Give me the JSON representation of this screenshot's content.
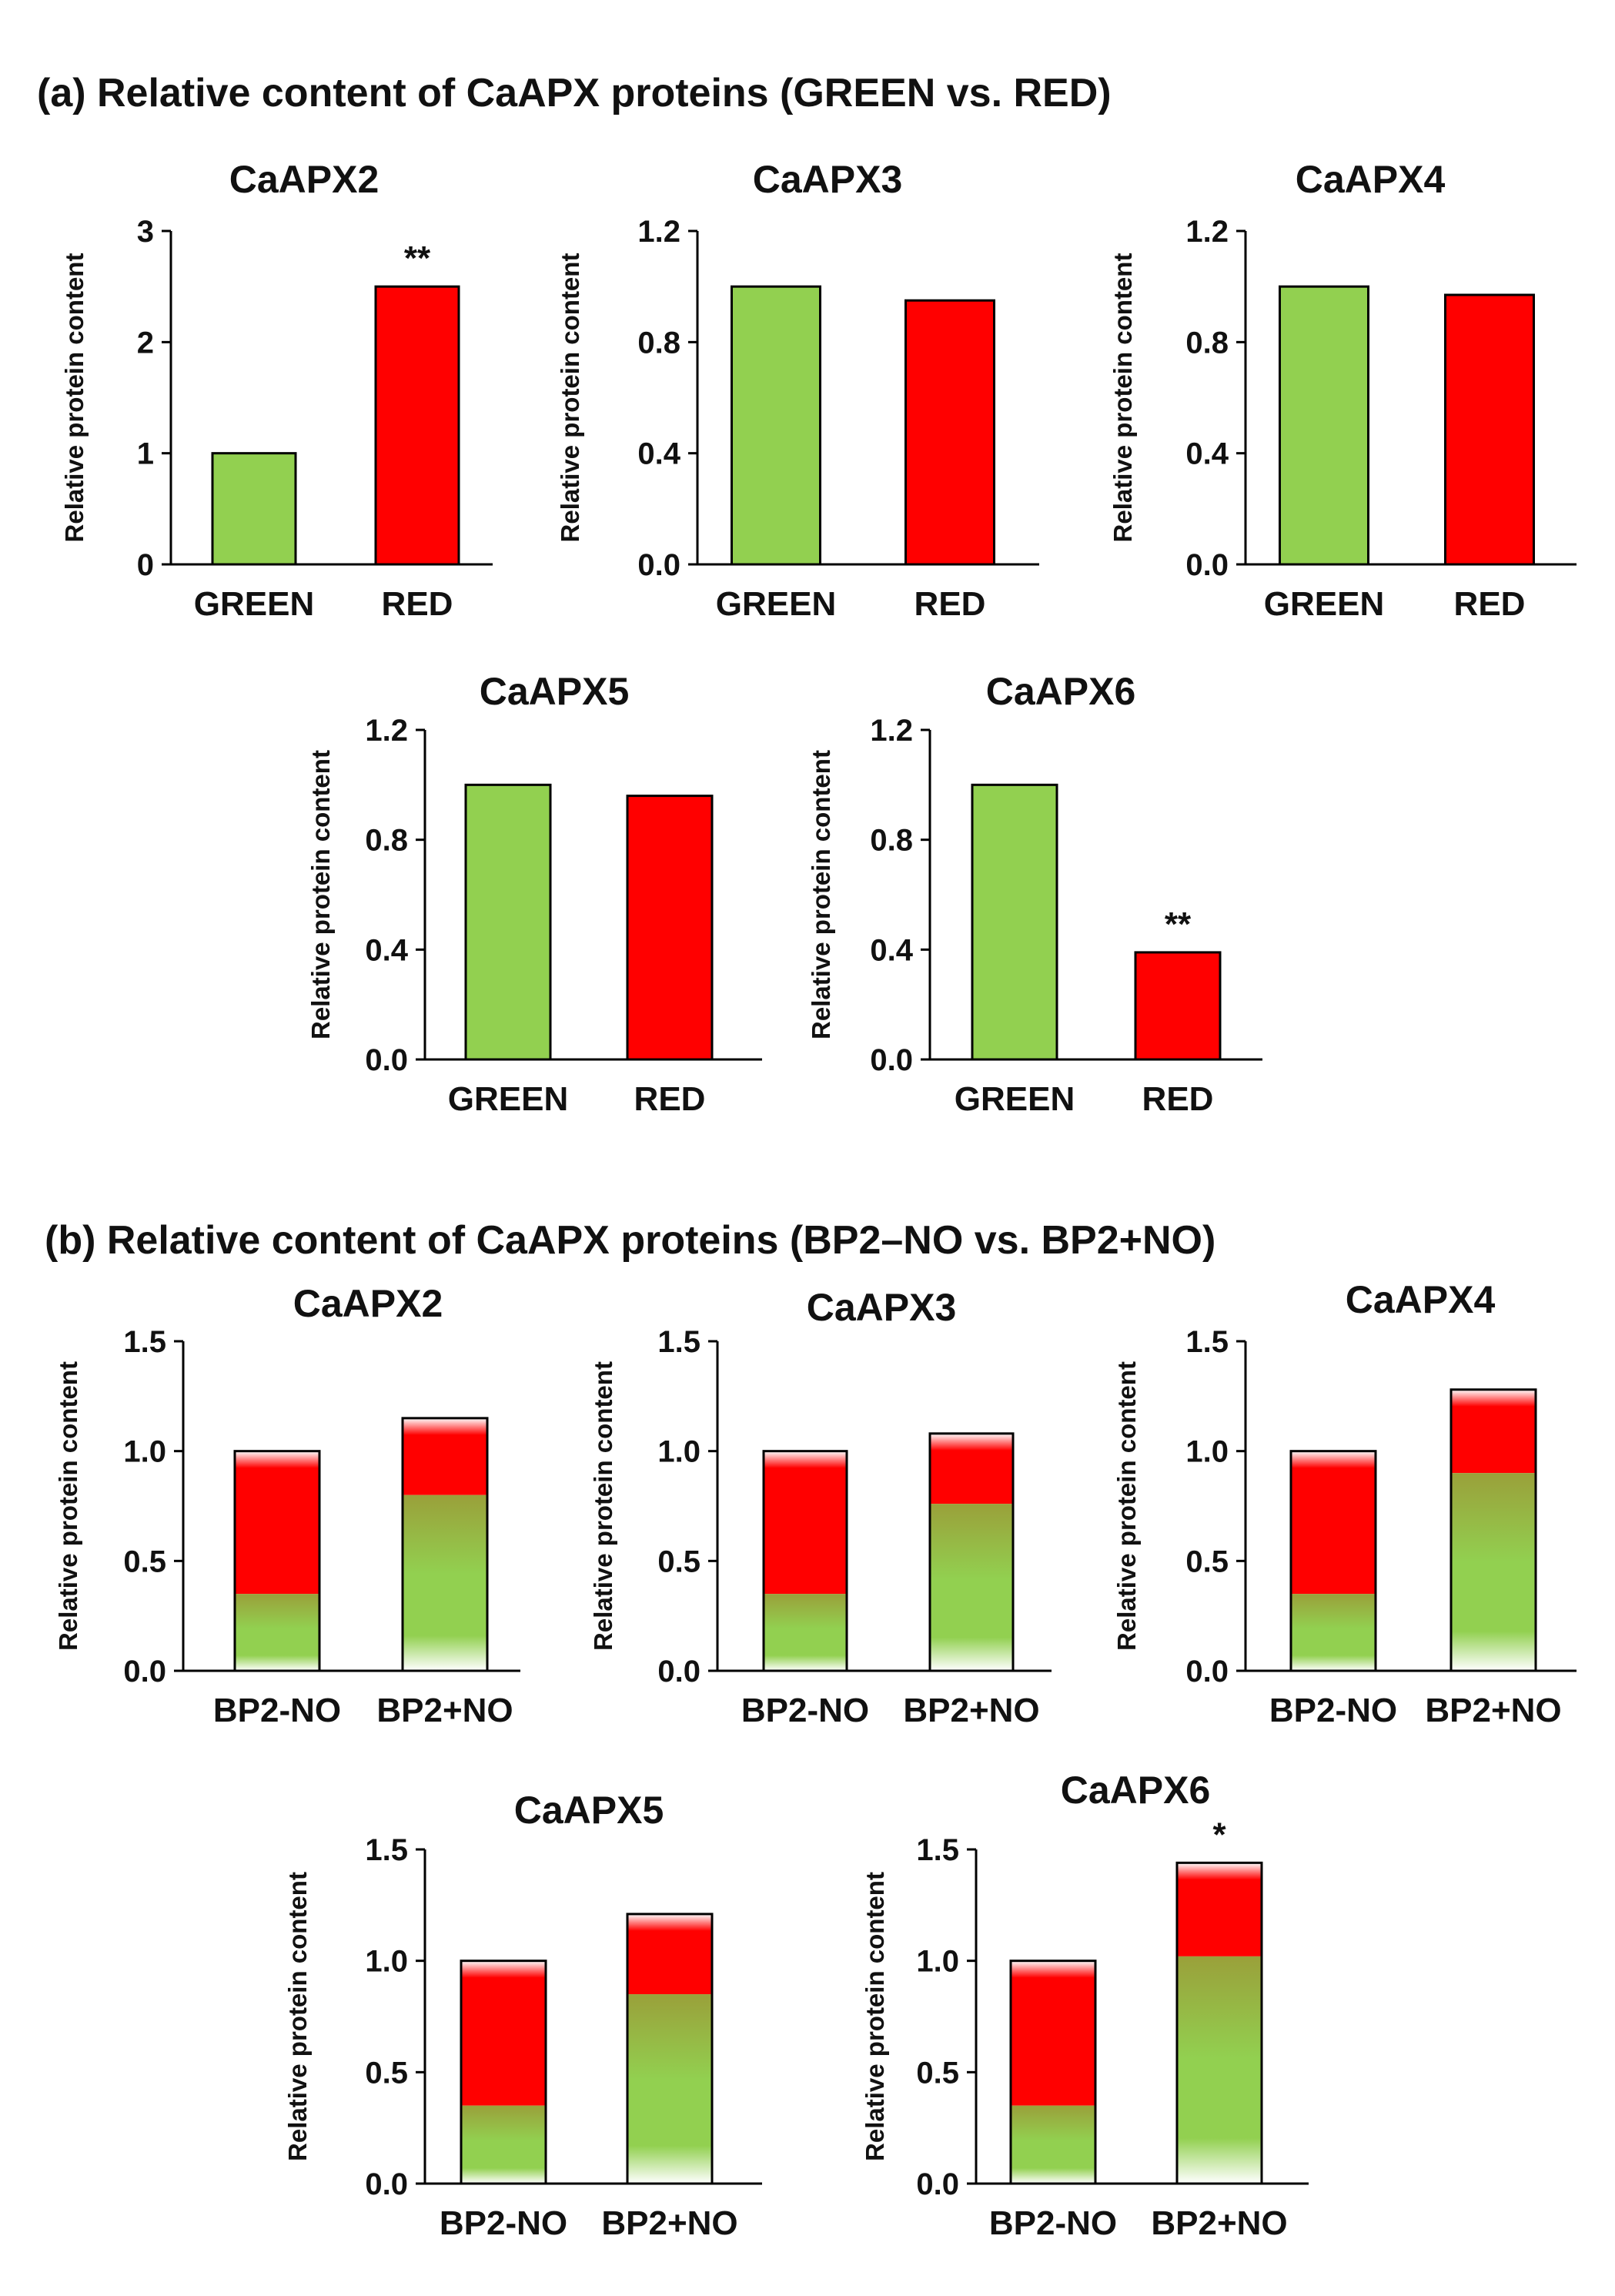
{
  "sections": [
    {
      "id": "a",
      "title": "(a) Relative content of CaAPX proteins (GREEN vs. RED)"
    },
    {
      "id": "b",
      "title": "(b) Relative content of CaAPX proteins (BP2–NO vs. BP2+NO)"
    }
  ],
  "colors": {
    "green": "#92d050",
    "red": "#ff0000",
    "olive": "#9aa03a",
    "axis": "#000000"
  },
  "chart_data": [
    {
      "section": "a",
      "type": "bar",
      "style": "solid",
      "title": "CaAPX2",
      "ylabel": "Relative protein content",
      "xlabel": "",
      "categories": [
        "GREEN",
        "RED"
      ],
      "values": [
        1.0,
        2.5
      ],
      "ylim": [
        0,
        3
      ],
      "yticks": [
        "0",
        "1",
        "2",
        "3"
      ],
      "yticks_num": [
        0,
        1,
        2,
        3
      ],
      "annotations": [
        "",
        "**"
      ]
    },
    {
      "section": "a",
      "type": "bar",
      "style": "solid",
      "title": "CaAPX3",
      "ylabel": "Relative protein content",
      "xlabel": "",
      "categories": [
        "GREEN",
        "RED"
      ],
      "values": [
        1.0,
        0.95
      ],
      "ylim": [
        0,
        1.2
      ],
      "yticks": [
        "0.0",
        "0.4",
        "0.8",
        "1.2"
      ],
      "yticks_num": [
        0,
        0.4,
        0.8,
        1.2
      ],
      "annotations": [
        "",
        ""
      ]
    },
    {
      "section": "a",
      "type": "bar",
      "style": "solid",
      "title": "CaAPX4",
      "ylabel": "Relative protein content",
      "xlabel": "",
      "categories": [
        "GREEN",
        "RED"
      ],
      "values": [
        1.0,
        0.97
      ],
      "ylim": [
        0,
        1.2
      ],
      "yticks": [
        "0.0",
        "0.4",
        "0.8",
        "1.2"
      ],
      "yticks_num": [
        0,
        0.4,
        0.8,
        1.2
      ],
      "annotations": [
        "",
        ""
      ]
    },
    {
      "section": "a",
      "type": "bar",
      "style": "solid",
      "title": "CaAPX5",
      "ylabel": "Relative protein content",
      "xlabel": "",
      "categories": [
        "GREEN",
        "RED"
      ],
      "values": [
        1.0,
        0.96
      ],
      "ylim": [
        0,
        1.2
      ],
      "yticks": [
        "0.0",
        "0.4",
        "0.8",
        "1.2"
      ],
      "yticks_num": [
        0,
        0.4,
        0.8,
        1.2
      ],
      "annotations": [
        "",
        ""
      ]
    },
    {
      "section": "a",
      "type": "bar",
      "style": "solid",
      "title": "CaAPX6",
      "ylabel": "Relative protein content",
      "xlabel": "",
      "categories": [
        "GREEN",
        "RED"
      ],
      "values": [
        1.0,
        0.39
      ],
      "ylim": [
        0,
        1.2
      ],
      "yticks": [
        "0.0",
        "0.4",
        "0.8",
        "1.2"
      ],
      "yticks_num": [
        0,
        0.4,
        0.8,
        1.2
      ],
      "annotations": [
        "",
        "**"
      ]
    },
    {
      "section": "b",
      "type": "bar",
      "style": "gradient",
      "title": "CaAPX2",
      "ylabel": "Relative protein content",
      "xlabel": "",
      "categories": [
        "BP2-NO",
        "BP2+NO"
      ],
      "values": [
        1.0,
        1.15
      ],
      "green_portion": [
        0.35,
        0.8
      ],
      "ylim": [
        0,
        1.5
      ],
      "yticks": [
        "0.0",
        "0.5",
        "1.0",
        "1.5"
      ],
      "yticks_num": [
        0,
        0.5,
        1.0,
        1.5
      ],
      "annotations": [
        "",
        ""
      ]
    },
    {
      "section": "b",
      "type": "bar",
      "style": "gradient",
      "title": "CaAPX3",
      "ylabel": "Relative protein content",
      "xlabel": "",
      "categories": [
        "BP2-NO",
        "BP2+NO"
      ],
      "values": [
        1.0,
        1.08
      ],
      "green_portion": [
        0.35,
        0.76
      ],
      "ylim": [
        0,
        1.5
      ],
      "yticks": [
        "0.0",
        "0.5",
        "1.0",
        "1.5"
      ],
      "yticks_num": [
        0,
        0.5,
        1.0,
        1.5
      ],
      "annotations": [
        "",
        ""
      ]
    },
    {
      "section": "b",
      "type": "bar",
      "style": "gradient",
      "title": "CaAPX4",
      "ylabel": "Relative protein content",
      "xlabel": "",
      "categories": [
        "BP2-NO",
        "BP2+NO"
      ],
      "values": [
        1.0,
        1.28
      ],
      "green_portion": [
        0.35,
        0.9
      ],
      "ylim": [
        0,
        1.5
      ],
      "yticks": [
        "0.0",
        "0.5",
        "1.0",
        "1.5"
      ],
      "yticks_num": [
        0,
        0.5,
        1.0,
        1.5
      ],
      "annotations": [
        "",
        ""
      ]
    },
    {
      "section": "b",
      "type": "bar",
      "style": "gradient",
      "title": "CaAPX5",
      "ylabel": "Relative protein content",
      "xlabel": "",
      "categories": [
        "BP2-NO",
        "BP2+NO"
      ],
      "values": [
        1.0,
        1.21
      ],
      "green_portion": [
        0.35,
        0.85
      ],
      "ylim": [
        0,
        1.5
      ],
      "yticks": [
        "0.0",
        "0.5",
        "1.0",
        "1.5"
      ],
      "yticks_num": [
        0,
        0.5,
        1.0,
        1.5
      ],
      "annotations": [
        "",
        ""
      ]
    },
    {
      "section": "b",
      "type": "bar",
      "style": "gradient",
      "title": "CaAPX6",
      "ylabel": "Relative protein content",
      "xlabel": "",
      "categories": [
        "BP2-NO",
        "BP2+NO"
      ],
      "values": [
        1.0,
        1.44
      ],
      "green_portion": [
        0.35,
        1.02
      ],
      "ylim": [
        0,
        1.5
      ],
      "yticks": [
        "0.0",
        "0.5",
        "1.0",
        "1.5"
      ],
      "yticks_num": [
        0,
        0.5,
        1.0,
        1.5
      ],
      "annotations": [
        "",
        "*"
      ]
    }
  ]
}
